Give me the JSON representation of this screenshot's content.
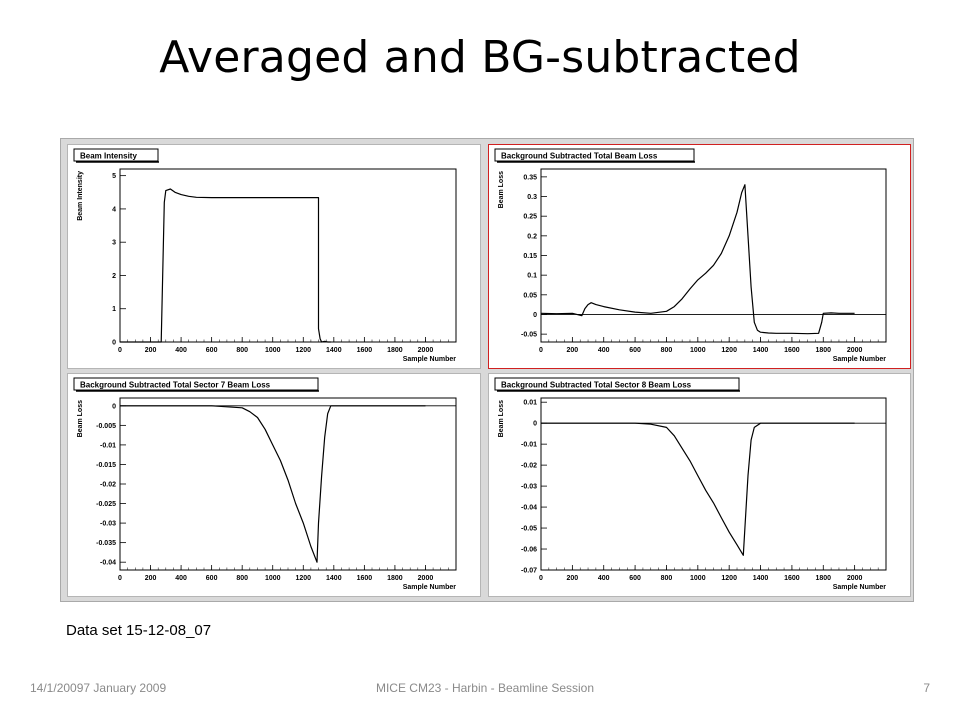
{
  "slide": {
    "title": "Averaged and BG-subtracted",
    "caption": "Data set 15-12-08_07",
    "footer_date": "14/1/20097 January 2009",
    "footer_center": "MICE CM23 - Harbin - Beamline Session",
    "page_number": "7"
  },
  "colors": {
    "panel_highlight": "#d02020",
    "trace": "#000000",
    "frame": "#d9d9d9"
  },
  "chart_data": [
    {
      "type": "line",
      "title": "Beam Intensity",
      "xlabel": "Sample Number",
      "ylabel": "Beam Intensity",
      "xlim": [
        0,
        2200
      ],
      "ylim": [
        0,
        5.2
      ],
      "xticks": [
        0,
        200,
        400,
        600,
        800,
        1000,
        1200,
        1400,
        1600,
        1800,
        2000
      ],
      "yticks": [
        0,
        1,
        2,
        3,
        4,
        5
      ],
      "ytick_labels": [
        "0",
        "1",
        "2",
        "3",
        "4",
        "5"
      ],
      "reference_line": null,
      "highlighted": false,
      "x": [
        0,
        270,
        290,
        300,
        330,
        360,
        400,
        450,
        500,
        600,
        800,
        1000,
        1200,
        1300,
        1300,
        1310,
        1320,
        1340,
        1360,
        1380
      ],
      "y": [
        0,
        0,
        4.2,
        4.55,
        4.6,
        4.5,
        4.43,
        4.38,
        4.35,
        4.34,
        4.34,
        4.34,
        4.34,
        4.34,
        0.4,
        0.1,
        0.0,
        0.02,
        0.0,
        0.0
      ]
    },
    {
      "type": "line",
      "title": "Background Subtracted Total Beam Loss",
      "xlabel": "Sample Number",
      "ylabel": "Beam Loss",
      "xlim": [
        0,
        2200
      ],
      "ylim": [
        -0.07,
        0.37
      ],
      "xticks": [
        0,
        200,
        400,
        600,
        800,
        1000,
        1200,
        1400,
        1600,
        1800,
        2000
      ],
      "yticks": [
        -0.05,
        0,
        0.05,
        0.1,
        0.15,
        0.2,
        0.25,
        0.3,
        0.35
      ],
      "ytick_labels": [
        "-0.05",
        "0",
        "0.05",
        "0.1",
        "0.15",
        "0.2",
        "0.25",
        "0.3",
        "0.35"
      ],
      "reference_line": 0,
      "highlighted": true,
      "x": [
        0,
        100,
        200,
        260,
        280,
        300,
        320,
        350,
        400,
        500,
        600,
        700,
        800,
        850,
        900,
        950,
        1000,
        1050,
        1100,
        1150,
        1200,
        1250,
        1280,
        1300,
        1320,
        1340,
        1360,
        1380,
        1400,
        1450,
        1500,
        1600,
        1700,
        1770,
        1790,
        1800,
        1850,
        1900,
        2000
      ],
      "y": [
        0.003,
        0.002,
        0.003,
        -0.003,
        0.015,
        0.025,
        0.03,
        0.025,
        0.02,
        0.012,
        0.006,
        0.003,
        0.008,
        0.02,
        0.04,
        0.065,
        0.088,
        0.105,
        0.125,
        0.155,
        0.2,
        0.26,
        0.31,
        0.33,
        0.2,
        0.07,
        -0.02,
        -0.04,
        -0.045,
        -0.047,
        -0.048,
        -0.048,
        -0.049,
        -0.048,
        -0.02,
        0.003,
        0.004,
        0.003,
        0.003
      ]
    },
    {
      "type": "line",
      "title": "Background Subtracted Total Sector 7 Beam Loss",
      "xlabel": "Sample Number",
      "ylabel": "Beam Loss",
      "xlim": [
        0,
        2200
      ],
      "ylim": [
        -0.042,
        0.002
      ],
      "xticks": [
        0,
        200,
        400,
        600,
        800,
        1000,
        1200,
        1400,
        1600,
        1800,
        2000
      ],
      "yticks": [
        -0.04,
        -0.035,
        -0.03,
        -0.025,
        -0.02,
        -0.015,
        -0.01,
        -0.005,
        0
      ],
      "ytick_labels": [
        "-0.04",
        "-0.035",
        "-0.03",
        "-0.025",
        "-0.02",
        "-0.015",
        "-0.01",
        "-0.005",
        "0"
      ],
      "reference_line": 0,
      "highlighted": false,
      "x": [
        0,
        200,
        400,
        600,
        800,
        850,
        900,
        950,
        1000,
        1050,
        1100,
        1150,
        1200,
        1250,
        1290,
        1300,
        1320,
        1340,
        1360,
        1380,
        1400,
        1500,
        1700,
        1900,
        2000
      ],
      "y": [
        0.0,
        0.0,
        0.0,
        0.0,
        -0.0005,
        -0.0015,
        -0.003,
        -0.006,
        -0.01,
        -0.014,
        -0.019,
        -0.025,
        -0.03,
        -0.036,
        -0.04,
        -0.03,
        -0.018,
        -0.008,
        -0.002,
        0.0,
        0.0,
        0.0,
        0.0,
        0.0,
        0.0
      ]
    },
    {
      "type": "line",
      "title": "Background Subtracted Total Sector 8 Beam Loss",
      "xlabel": "Sample Number",
      "ylabel": "Beam Loss",
      "xlim": [
        0,
        2200
      ],
      "ylim": [
        -0.07,
        0.012
      ],
      "xticks": [
        0,
        200,
        400,
        600,
        800,
        1000,
        1200,
        1400,
        1600,
        1800,
        2000
      ],
      "yticks": [
        -0.07,
        -0.06,
        -0.05,
        -0.04,
        -0.03,
        -0.02,
        -0.01,
        0,
        0.01
      ],
      "ytick_labels": [
        "-0.07",
        "-0.06",
        "-0.05",
        "-0.04",
        "-0.03",
        "-0.02",
        "-0.01",
        "0",
        "0.01"
      ],
      "reference_line": 0,
      "highlighted": false,
      "x": [
        0,
        200,
        400,
        600,
        700,
        800,
        850,
        900,
        950,
        1000,
        1050,
        1100,
        1150,
        1200,
        1250,
        1290,
        1300,
        1320,
        1340,
        1360,
        1400,
        1500,
        1700,
        1900,
        2000
      ],
      "y": [
        0.0,
        0.0,
        0.0,
        0.0,
        -0.0005,
        -0.002,
        -0.006,
        -0.012,
        -0.018,
        -0.025,
        -0.032,
        -0.038,
        -0.045,
        -0.052,
        -0.058,
        -0.063,
        -0.05,
        -0.025,
        -0.008,
        -0.002,
        0.0,
        0.0,
        0.0,
        0.0,
        0.0
      ]
    }
  ]
}
